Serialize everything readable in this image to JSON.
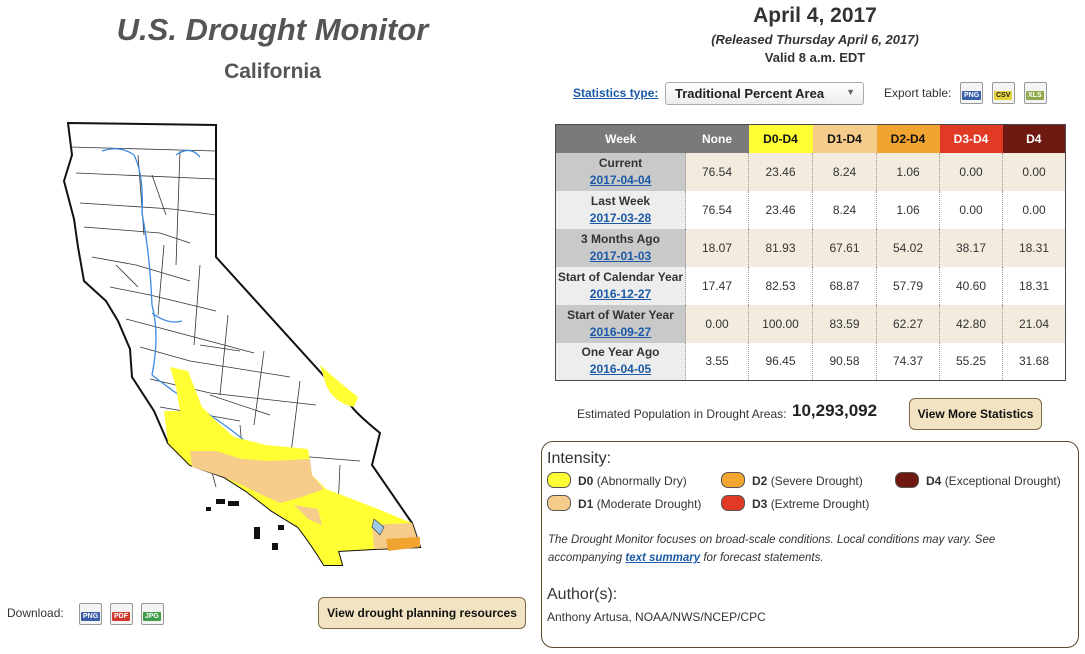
{
  "header": {
    "title": "U.S. Drought Monitor",
    "state": "California",
    "date": "April 4, 2017",
    "released": "(Released Thursday April 6, 2017)",
    "valid": "Valid 8 a.m. EDT"
  },
  "controls": {
    "statistics_type_label": "Statistics type:",
    "statistics_type_value": "Traditional Percent Area",
    "export_label": "Export table:",
    "export_formats": [
      "PNG",
      "CSV",
      "XLS"
    ]
  },
  "table": {
    "columns": [
      "Week",
      "None",
      "D0-D4",
      "D1-D4",
      "D2-D4",
      "D3-D4",
      "D4"
    ],
    "rows": [
      {
        "label": "Current",
        "date": "2017-04-04",
        "values": [
          "76.54",
          "23.46",
          "8.24",
          "1.06",
          "0.00",
          "0.00"
        ]
      },
      {
        "label": "Last Week",
        "date": "2017-03-28",
        "values": [
          "76.54",
          "23.46",
          "8.24",
          "1.06",
          "0.00",
          "0.00"
        ]
      },
      {
        "label": "3 Months Ago",
        "date": "2017-01-03",
        "values": [
          "18.07",
          "81.93",
          "67.61",
          "54.02",
          "38.17",
          "18.31"
        ]
      },
      {
        "label": "Start of Calendar Year",
        "date": "2016-12-27",
        "values": [
          "17.47",
          "82.53",
          "68.87",
          "57.79",
          "40.60",
          "18.31"
        ]
      },
      {
        "label": "Start of Water Year",
        "date": "2016-09-27",
        "values": [
          "0.00",
          "100.00",
          "83.59",
          "62.27",
          "42.80",
          "21.04"
        ]
      },
      {
        "label": "One Year Ago",
        "date": "2016-04-05",
        "values": [
          "3.55",
          "96.45",
          "90.58",
          "74.37",
          "55.25",
          "31.68"
        ]
      }
    ]
  },
  "population": {
    "label": "Estimated Population in Drought Areas:",
    "value": "10,293,092"
  },
  "buttons": {
    "more_stats": "View More Statistics",
    "planning": "View drought planning resources"
  },
  "download": {
    "label": "Download:",
    "formats": [
      "PNG",
      "PDF",
      "JPG"
    ]
  },
  "legend": {
    "title": "Intensity:",
    "items": [
      {
        "code": "D0",
        "desc": "(Abnormally Dry)",
        "color": "#ffff33"
      },
      {
        "code": "D1",
        "desc": "(Moderate Drought)",
        "color": "#f5cc8a"
      },
      {
        "code": "D2",
        "desc": "(Severe Drought)",
        "color": "#f2a431"
      },
      {
        "code": "D3",
        "desc": "(Extreme Drought)",
        "color": "#e03a24"
      },
      {
        "code": "D4",
        "desc": "(Exceptional Drought)",
        "color": "#6e1a12"
      }
    ],
    "note_before": "The Drought Monitor focuses on broad-scale conditions. Local conditions may vary. See accompanying ",
    "note_link": "text summary",
    "note_after": " for forecast statements."
  },
  "authors": {
    "title": "Author(s):",
    "name": "Anthony Artusa, NOAA/NWS/NCEP/CPC"
  },
  "colors": {
    "header_week": "#7a7a7a",
    "header_none": "#7a7a7a",
    "header_d0": "#ffff33",
    "header_d1": "#f5cc8a",
    "header_d2": "#f2a431",
    "header_d3": "#e03a24",
    "header_d4": "#6e1a12",
    "row_label_odd": "#c9c9c9",
    "row_label_even": "#ededed",
    "row_data_odd": "#f3ecde",
    "row_data_even": "#ffffff",
    "link": "#1a5aa6",
    "button_bg": "#f2e4c2"
  }
}
